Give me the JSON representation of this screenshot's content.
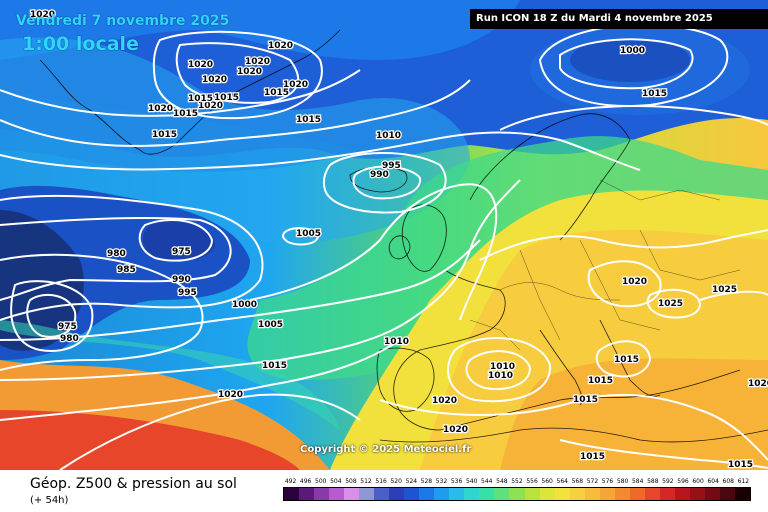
{
  "header": {
    "date": "Vendredi 7 novembre 2025",
    "time": "1:00 locale",
    "run": "Run ICON 18 Z du Mardi 4 novembre 2025",
    "copyright": "Copyright © 2025 Meteociel.fr"
  },
  "footer": {
    "title": "Géop. Z500 & pression au sol",
    "subtitle": "(+ 54h)"
  },
  "legend": {
    "values": [
      "492",
      "496",
      "500",
      "504",
      "508",
      "512",
      "516",
      "520",
      "524",
      "528",
      "532",
      "536",
      "540",
      "544",
      "548",
      "552",
      "556",
      "560",
      "564",
      "568",
      "572",
      "576",
      "580",
      "584",
      "588",
      "592",
      "596",
      "600",
      "604",
      "608",
      "612"
    ],
    "colors": [
      "#2a003f",
      "#5b1a7a",
      "#8a3aa8",
      "#b95ad1",
      "#d98ee8",
      "#8f96d6",
      "#4a5fc8",
      "#2b3fb8",
      "#1b56d0",
      "#1c78e6",
      "#1e9cf0",
      "#27bde8",
      "#2fd6d0",
      "#37e0a6",
      "#5ee07a",
      "#8ee054",
      "#b9e23c",
      "#dde43a",
      "#f4e23c",
      "#f7d03f",
      "#f7bc3c",
      "#f6a638",
      "#f38a30",
      "#ef6a28",
      "#e8462a",
      "#d62626",
      "#b8151c",
      "#961018",
      "#740a14",
      "#4e0710",
      "#1a0000"
    ]
  },
  "map": {
    "isobar_labels": [
      {
        "t": "1020"
      },
      {
        "t": "1020"
      },
      {
        "t": "1020"
      },
      {
        "t": "1020"
      },
      {
        "t": "1020"
      },
      {
        "t": "1020"
      },
      {
        "t": "1020"
      },
      {
        "t": "1020"
      },
      {
        "t": "1020"
      },
      {
        "t": "1015"
      },
      {
        "t": "1015"
      },
      {
        "t": "1015"
      },
      {
        "t": "1015"
      },
      {
        "t": "1015"
      },
      {
        "t": "1015"
      },
      {
        "t": "1015"
      },
      {
        "t": "1010"
      },
      {
        "t": "995"
      },
      {
        "t": "990"
      },
      {
        "t": "1000"
      },
      {
        "t": "1005"
      },
      {
        "t": "975"
      },
      {
        "t": "980"
      },
      {
        "t": "985"
      },
      {
        "t": "985"
      },
      {
        "t": "990"
      },
      {
        "t": "995"
      },
      {
        "t": "1000"
      },
      {
        "t": "1005"
      },
      {
        "t": "975"
      },
      {
        "t": "980"
      },
      {
        "t": "1015"
      },
      {
        "t": "1020"
      },
      {
        "t": "1010"
      },
      {
        "t": "1010"
      },
      {
        "t": "1010"
      },
      {
        "t": "1020"
      },
      {
        "t": "1020"
      },
      {
        "t": "1015"
      },
      {
        "t": "1015"
      },
      {
        "t": "1015"
      },
      {
        "t": "1020"
      },
      {
        "t": "1025"
      },
      {
        "t": "1025"
      },
      {
        "t": "1015"
      },
      {
        "t": "1020"
      },
      {
        "t": "1015"
      },
      {
        "t": "1015"
      },
      {
        "t": "1015"
      }
    ]
  }
}
